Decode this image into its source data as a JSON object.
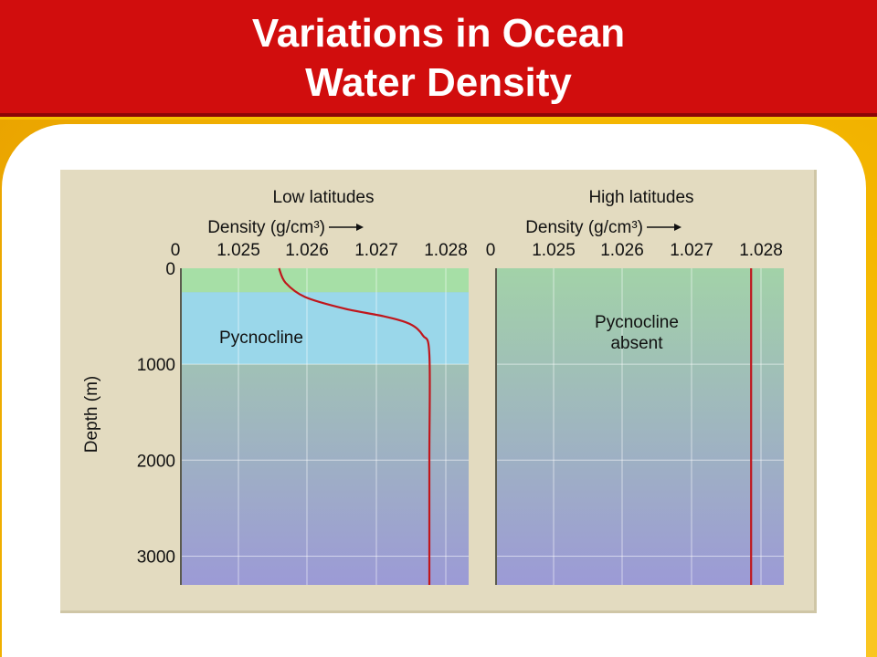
{
  "slide": {
    "title_line1": "Variations in Ocean",
    "title_line2": "Water Density"
  },
  "colors": {
    "title_bar": "#d10d0d",
    "background": "#f5b800",
    "curve": "#c0161c",
    "surface_zone": "#a6dfa6",
    "pycnocline_zone": "#9ad7ea",
    "deep_zone_top": "#a2d2a8",
    "deep_zone_bottom": "#9c9ad6"
  },
  "chart_data": [
    {
      "type": "line",
      "title": "Low latitudes",
      "xlabel": "Density (g/cm³)",
      "ylabel": "Depth (m)",
      "x_ticks": [
        "0",
        "1.025",
        "1.026",
        "1.027",
        "1.028"
      ],
      "y_ticks": [
        "0",
        "1000",
        "2000",
        "3000"
      ],
      "xlim": [
        1.024,
        1.0284
      ],
      "ylim": [
        3300,
        0
      ],
      "y_inverted": true,
      "annotations": [
        {
          "text": "Pycnocline"
        }
      ],
      "zones": [
        {
          "name": "surface",
          "from": 0,
          "to": 250
        },
        {
          "name": "pycnocline",
          "from": 250,
          "to": 1000
        }
      ],
      "series": [
        {
          "x": [
            1.0255,
            1.0256,
            1.0259,
            1.0265,
            1.0271,
            1.0275,
            1.0277,
            1.0278,
            1.0278,
            1.0278
          ],
          "y": [
            0,
            150,
            300,
            420,
            500,
            580,
            700,
            900,
            2000,
            3300
          ]
        }
      ]
    },
    {
      "type": "line",
      "title": "High latitudes",
      "xlabel": "Density (g/cm³)",
      "ylabel": "Depth (m)",
      "x_ticks": [
        "0",
        "1.025",
        "1.026",
        "1.027",
        "1.028"
      ],
      "y_ticks": [
        "0",
        "1000",
        "2000",
        "3000"
      ],
      "xlim": [
        1.024,
        1.0284
      ],
      "ylim": [
        3300,
        0
      ],
      "y_inverted": true,
      "annotations": [
        {
          "text": "Pycnocline"
        },
        {
          "text": "absent"
        }
      ],
      "series": [
        {
          "x": [
            1.0279,
            1.0279
          ],
          "y": [
            0,
            3300
          ]
        }
      ]
    }
  ]
}
